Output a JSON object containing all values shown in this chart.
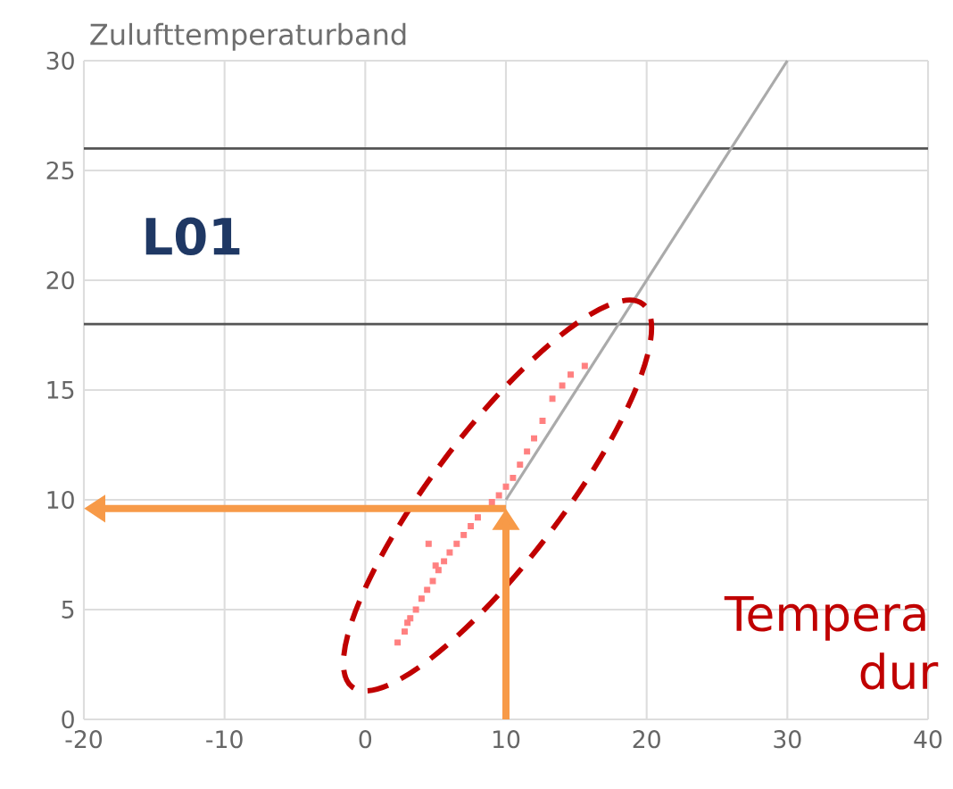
{
  "chart_data": {
    "type": "scatter",
    "title": "Zulufttemperaturband",
    "annotations": [
      "L01",
      "Tempera",
      "dur"
    ],
    "xlim": [
      -20,
      40
    ],
    "xticks": [
      -20,
      -10,
      0,
      10,
      20,
      30,
      40
    ],
    "ylim": [
      0,
      30
    ],
    "yticks": [
      0,
      5,
      10,
      15,
      20,
      25,
      30
    ],
    "grid": true,
    "ref_lines": [
      {
        "axis": "y",
        "value": 26,
        "color": "#555555"
      },
      {
        "axis": "y",
        "value": 18,
        "color": "#555555"
      }
    ],
    "series": [
      {
        "color": "#ff8080",
        "marker": "square",
        "x": [
          2.3,
          2.8,
          3.0,
          3.2,
          3.6,
          4.0,
          4.4,
          4.5,
          4.8,
          5.0,
          5.2,
          5.6,
          6.0,
          6.5,
          7.0,
          7.5,
          8.0,
          8.5,
          9.0,
          9.5,
          10.0,
          10.5,
          11.0,
          11.5,
          12.0,
          12.6,
          13.3,
          14.0,
          14.6,
          15.6
        ],
        "values": [
          3.5,
          4.0,
          4.4,
          4.6,
          5.0,
          5.5,
          5.9,
          8.0,
          6.3,
          7.0,
          6.8,
          7.2,
          7.6,
          8.0,
          8.4,
          8.8,
          9.2,
          null,
          9.9,
          10.2,
          10.6,
          11.0,
          11.6,
          12.2,
          12.8,
          13.6,
          14.6,
          15.2,
          15.7,
          16.1
        ]
      },
      {
        "type": "line",
        "color": "#aaaaaa",
        "marker": "none",
        "x": [
          10,
          30
        ],
        "values": [
          10,
          30
        ]
      }
    ]
  }
}
